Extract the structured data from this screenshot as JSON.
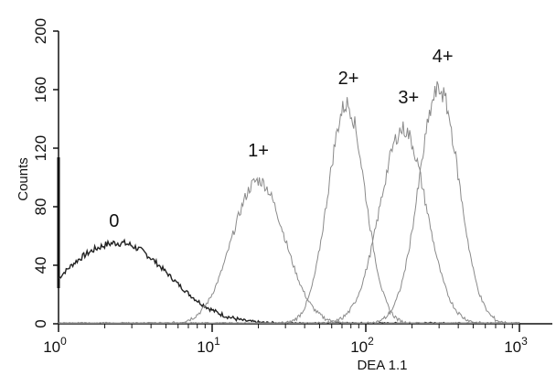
{
  "chart_data": {
    "type": "line",
    "xlabel": "DEA 1.1",
    "ylabel": "Counts",
    "xscale": "log",
    "xlim": [
      1,
      1000
    ],
    "ylim": [
      0,
      200
    ],
    "xticks": [
      {
        "base": "10",
        "exp": "0",
        "value": 1
      },
      {
        "base": "10",
        "exp": "1",
        "value": 10
      },
      {
        "base": "10",
        "exp": "2",
        "value": 100
      },
      {
        "base": "10",
        "exp": "3",
        "value": 1000
      }
    ],
    "yticks": [
      "0",
      "40",
      "80",
      "120",
      "160",
      "200"
    ],
    "series": [
      {
        "name": "0",
        "color": "#222222",
        "center": 2.5,
        "peak": 55,
        "spread": 0.32
      },
      {
        "name": "1+",
        "color": "#8a8a8a",
        "center": 20,
        "peak": 98,
        "spread": 0.17
      },
      {
        "name": "2+",
        "color": "#8a8a8a",
        "center": 75,
        "peak": 150,
        "spread": 0.12
      },
      {
        "name": "3+",
        "color": "#8a8a8a",
        "center": 175,
        "peak": 133,
        "spread": 0.15
      },
      {
        "name": "4+",
        "color": "#8a8a8a",
        "center": 300,
        "peak": 160,
        "spread": 0.13
      }
    ]
  }
}
